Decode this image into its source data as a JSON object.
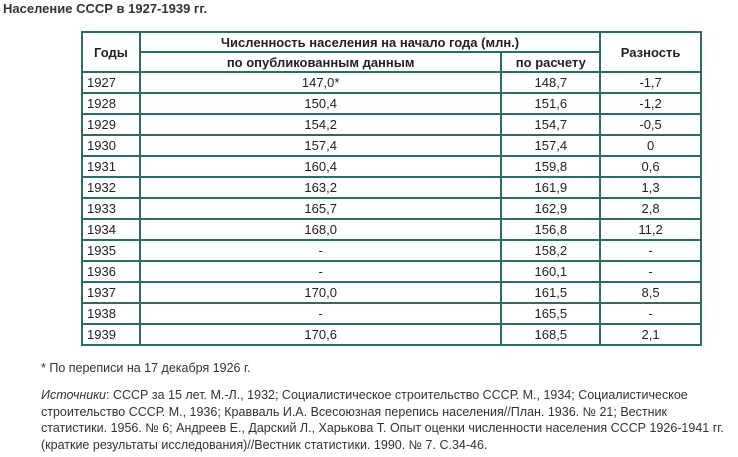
{
  "title": "Население СССР в 1927-1939 гг.",
  "table": {
    "headers": {
      "years": "Годы",
      "group": "Численность населения на начало года (млн.)",
      "published": "по опубликованным данным",
      "calculated": "по расчету",
      "difference": "Разность"
    },
    "rows": [
      {
        "year": "1927",
        "published": "147,0*",
        "calculated": "148,7",
        "difference": "-1,7"
      },
      {
        "year": "1928",
        "published": "150,4",
        "calculated": "151,6",
        "difference": "-1,2"
      },
      {
        "year": "1929",
        "published": "154,2",
        "calculated": "154,7",
        "difference": "-0,5"
      },
      {
        "year": "1930",
        "published": "157,4",
        "calculated": "157,4",
        "difference": "0"
      },
      {
        "year": "1931",
        "published": "160,4",
        "calculated": "159,8",
        "difference": "0,6"
      },
      {
        "year": "1932",
        "published": "163,2",
        "calculated": "161,9",
        "difference": "1,3"
      },
      {
        "year": "1933",
        "published": "165,7",
        "calculated": "162,9",
        "difference": "2,8"
      },
      {
        "year": "1934",
        "published": "168,0",
        "calculated": "156,8",
        "difference": "11,2"
      },
      {
        "year": "1935",
        "published": "-",
        "calculated": "158,2",
        "difference": "-"
      },
      {
        "year": "1936",
        "published": "-",
        "calculated": "160,1",
        "difference": "-"
      },
      {
        "year": "1937",
        "published": "170,0",
        "calculated": "161,5",
        "difference": "8,5"
      },
      {
        "year": "1938",
        "published": "-",
        "calculated": "165,5",
        "difference": "-"
      },
      {
        "year": "1939",
        "published": "170,6",
        "calculated": "168,5",
        "difference": "2,1"
      }
    ]
  },
  "footnote": "* По переписи на 17 декабря 1926 г.",
  "sources": {
    "label": "Источники",
    "text": ": СССР за 15 лет. М.-Л., 1932; Социалистическое строительство СССР. М., 1934; Социалистическое строительство СССР. М., 1936; Кравваль И.А. Всесоюзная перепись населения//План. 1936. № 21; Вестник статистики. 1956. № 6; Андреев Е., Дарский Л., Харькова Т. Опыт оценки численности населения СССР 1926-1941 гг. (краткие результаты исследования)//Вестник статистики. 1990. № 7. С.34-46."
  }
}
